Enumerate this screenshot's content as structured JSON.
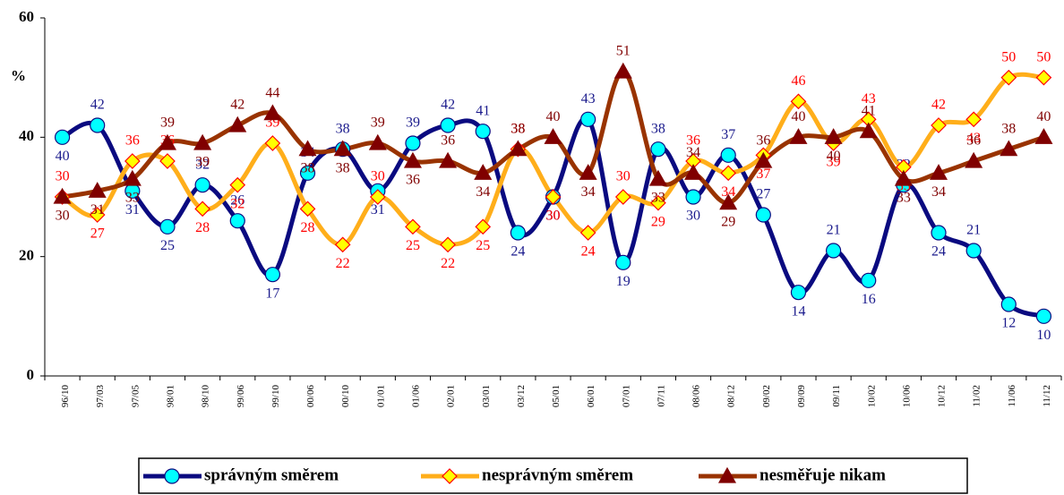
{
  "chart_data": {
    "type": "line",
    "y_label": "%",
    "categories": [
      "96/10",
      "97/03",
      "97/05",
      "98/01",
      "98/10",
      "99/06",
      "99/10",
      "00/06",
      "00/10",
      "01/01",
      "01/06",
      "02/01",
      "03/01",
      "03/12",
      "05/01",
      "06/01",
      "07/01",
      "07/11",
      "08/06",
      "08/12",
      "09/02",
      "09/09",
      "09/11",
      "10/02",
      "10/06",
      "10/12",
      "11/02",
      "11/06",
      "11/12"
    ],
    "series": [
      {
        "name": "správným směrem",
        "color": "#0a0a80",
        "marker": "circle",
        "marker_color": "#00ffff",
        "marker_stroke": "#0a0a80",
        "label_color": "#1a1a8c",
        "values": [
          40,
          42,
          31,
          25,
          32,
          26,
          17,
          34,
          38,
          31,
          39,
          42,
          41,
          24,
          30,
          43,
          19,
          38,
          30,
          37,
          27,
          14,
          21,
          16,
          32,
          24,
          21,
          12,
          10
        ]
      },
      {
        "name": "nesprávným směrem",
        "color": "#ffae1a",
        "marker": "diamond",
        "marker_color": "#ffff00",
        "marker_stroke": "#ff0000",
        "label_color": "#ff0000",
        "values": [
          30,
          27,
          36,
          36,
          28,
          32,
          39,
          28,
          22,
          30,
          25,
          22,
          25,
          38,
          30,
          24,
          30,
          29,
          36,
          34,
          37,
          46,
          39,
          43,
          35,
          42,
          43,
          50,
          50
        ]
      },
      {
        "name": "nesměřuje nikam",
        "color": "#993300",
        "marker": "triangle",
        "marker_color": "#800000",
        "marker_stroke": "#800000",
        "label_color": "#800000",
        "values": [
          30,
          31,
          33,
          39,
          39,
          42,
          44,
          38,
          38,
          39,
          36,
          36,
          34,
          38,
          40,
          34,
          51,
          33,
          34,
          29,
          36,
          40,
          40,
          41,
          33,
          34,
          36,
          38,
          40
        ]
      }
    ],
    "ylim": [
      0,
      60
    ],
    "yticks": [
      0,
      20,
      40,
      60
    ],
    "grid": false
  }
}
